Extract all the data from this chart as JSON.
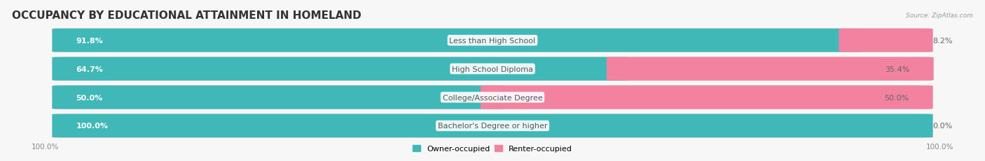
{
  "title": "OCCUPANCY BY EDUCATIONAL ATTAINMENT IN HOMELAND",
  "source": "Source: ZipAtlas.com",
  "categories": [
    "Less than High School",
    "High School Diploma",
    "College/Associate Degree",
    "Bachelor's Degree or higher"
  ],
  "owner_values": [
    91.8,
    64.7,
    50.0,
    100.0
  ],
  "renter_values": [
    8.2,
    35.4,
    50.0,
    0.0
  ],
  "owner_color": "#40b8b8",
  "renter_color": "#f282a0",
  "bar_bg_color": "#e4e4e8",
  "fig_bg_color": "#f7f7f7",
  "row_bg_color": "#ebebef",
  "title_color": "#333333",
  "source_color": "#999999",
  "value_color_inside": "#ffffff",
  "value_color_outside": "#666666",
  "cat_label_color": "#555555",
  "title_fontsize": 11,
  "label_fontsize": 8,
  "value_fontsize": 8,
  "tick_fontsize": 7.5,
  "legend_fontsize": 8,
  "figsize": [
    14.06,
    2.32
  ],
  "dpi": 100
}
